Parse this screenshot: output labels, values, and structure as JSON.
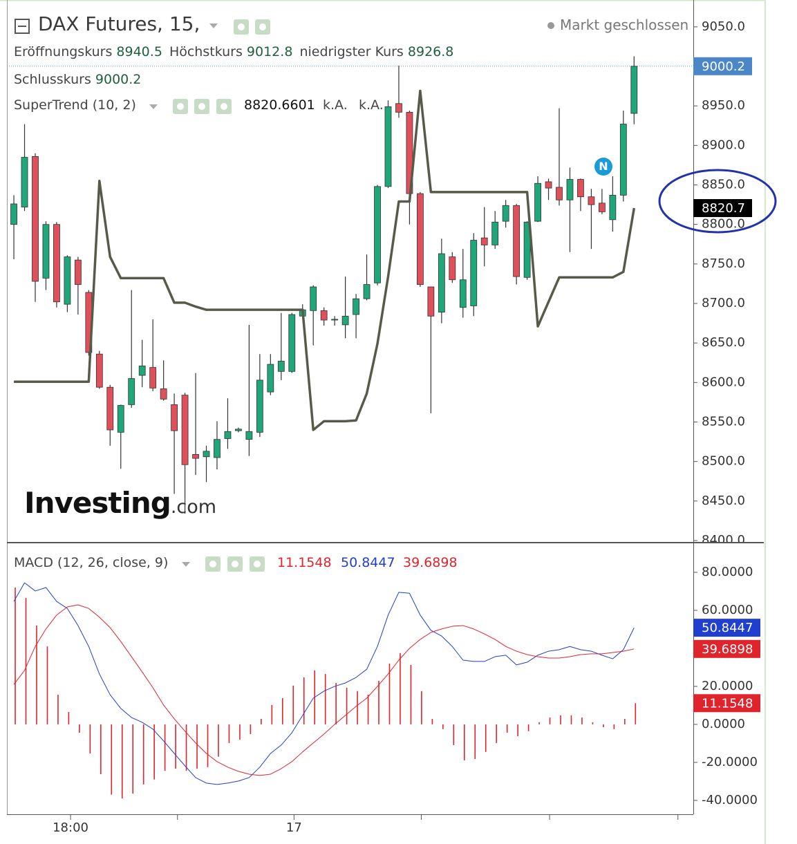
{
  "chart_data": [
    {
      "type": "candlestick",
      "title": "DAX Futures, 15,",
      "status": "Markt geschlossen",
      "ohlc_labels": {
        "open": "Eröffnungskurs",
        "high": "Höchstkurs",
        "low": "niedrigster Kurs",
        "close": "Schlusskurs"
      },
      "legend_na": [
        "k.A.",
        "k.A."
      ],
      "watermark": {
        "main": "Investing",
        "suffix": ".com"
      },
      "news_marker": "N",
      "up_color": "#1fa67a",
      "down_color": "#e0505a",
      "close_tag_color": "#4a86c8",
      "supertrend_tag_color": "#000000",
      "supertrend_tag": 8820.7,
      "candles": {
        "open": [
          8800,
          8822,
          8886,
          8732,
          8800,
          8699,
          8755,
          8714,
          8636,
          8594,
          8537,
          8572,
          8609,
          8619,
          8592,
          8572,
          8584,
          8509,
          8506,
          8505,
          8529,
          8539,
          8528,
          8537,
          8588,
          8614,
          8614,
          8684,
          8691,
          8691,
          8679,
          8673,
          8686,
          8706,
          8726,
          8848,
          8953,
          8942,
          8839,
          8721,
          8689,
          8759,
          8695,
          8697,
          8783,
          8774,
          8804,
          8824,
          8733,
          8804,
          8854,
          8847,
          8831,
          8857,
          8835,
          8827,
          8806,
          8837,
          8940.5
        ],
        "high": [
          8837,
          8927,
          8890,
          8804,
          8803,
          8761,
          8759,
          8717,
          8640,
          8597,
          8572,
          8717,
          8654,
          8680,
          8628,
          8586,
          8587,
          8612,
          8520,
          8551,
          8580,
          8543,
          8673,
          8636,
          8636,
          8688,
          8688,
          8699,
          8723,
          8695,
          8684,
          8734,
          8712,
          8762,
          8850,
          8957,
          9001,
          8944,
          8841,
          8721,
          8782,
          8765,
          8769,
          8789,
          8822,
          8817,
          8831,
          8826,
          8804,
          8861,
          8858,
          8947,
          8872,
          8858,
          8845,
          8845,
          8861,
          8944,
          9012.8
        ],
        "low": [
          8756,
          8817,
          8702,
          8717,
          8695,
          8689,
          8686,
          8634,
          8592,
          8520,
          8491,
          8568,
          8594,
          8589,
          8577,
          8459,
          8434,
          8483,
          8474,
          8490,
          8516,
          8537,
          8507,
          8531,
          8584,
          8603,
          8612,
          8682,
          8647,
          8672,
          8672,
          8656,
          8656,
          8704,
          8723,
          8846,
          8935,
          8800,
          8721,
          8561,
          8675,
          8726,
          8682,
          8684,
          8747,
          8769,
          8796,
          8724,
          8730,
          8803,
          8831,
          8824,
          8765,
          8817,
          8769,
          8813,
          8791,
          8829,
          8926.8
        ],
        "close": [
          8826,
          8885,
          8728,
          8800,
          8702,
          8759,
          8724,
          8638,
          8594,
          8540,
          8571,
          8605,
          8621,
          8593,
          8579,
          8539,
          8496,
          8504,
          8513,
          8528,
          8538,
          8541,
          8538,
          8603,
          8623,
          8627,
          8686,
          8692,
          8721,
          8679,
          8680,
          8684,
          8706,
          8724,
          8848,
          8949,
          8942,
          8839,
          8724,
          8684,
          8763,
          8730,
          8730,
          8780,
          8774,
          8803,
          8824,
          8734,
          8803,
          8852,
          8846,
          8831,
          8857,
          8835,
          8825,
          8816,
          8837,
          8927,
          9000.2
        ]
      },
      "series": [
        {
          "name": "SuperTrend (10, 2)",
          "color": "#565a48",
          "values": [
            8601,
            8601,
            8601,
            8601,
            8601,
            8601,
            8601,
            8601,
            8855,
            8759,
            8732,
            8732,
            8732,
            8732,
            8732,
            8701,
            8701,
            8696,
            8692,
            8692,
            8692,
            8692,
            8692,
            8692,
            8692,
            8692,
            8692,
            8692,
            8540,
            8551,
            8551,
            8551,
            8552,
            8586,
            8649,
            8734,
            8829,
            8829,
            8969,
            8841,
            8841,
            8841,
            8841,
            8841,
            8841,
            8841,
            8841,
            8841,
            8841,
            8671,
            8702,
            8733,
            8733,
            8733,
            8733,
            8733,
            8733,
            8740,
            8820.6601
          ]
        }
      ],
      "ylim": [
        8400,
        9084
      ],
      "yticks": [
        {
          "value": 8400,
          "label": "8400.0"
        },
        {
          "value": 8450,
          "label": "8450.0"
        },
        {
          "value": 8500,
          "label": "8500.0"
        },
        {
          "value": 8550,
          "label": "8550.0"
        },
        {
          "value": 8600,
          "label": "8600.0"
        },
        {
          "value": 8650,
          "label": "8650.0"
        },
        {
          "value": 8700,
          "label": "8700.0"
        },
        {
          "value": 8750,
          "label": "8750.0"
        },
        {
          "value": 8800,
          "label": "8800.0"
        },
        {
          "value": 8850,
          "label": "8850.0"
        },
        {
          "value": 8900,
          "label": "8900.0"
        },
        {
          "value": 8950,
          "label": "8950.0"
        },
        {
          "value": 9000,
          "label": "9000.0"
        },
        {
          "value": 9050,
          "label": "9050.0"
        }
      ]
    },
    {
      "type": "macd",
      "title": "MACD (12, 26, close, 9)",
      "series": [
        {
          "style": "histogram",
          "color": "#e0242c",
          "values": [
            72,
            66.5,
            52,
            41,
            15.6,
            6.5,
            -4.4,
            -15.3,
            -26.2,
            -37,
            -39,
            -36.4,
            -31.6,
            -29,
            -24.4,
            -23.3,
            -24.4,
            -23.3,
            -22.5,
            -17,
            -9.8,
            -8,
            -5.1,
            2.9,
            10.2,
            13.8,
            20.4,
            24.7,
            28.4,
            26.5,
            21.8,
            19.3,
            17.5,
            15.6,
            22.9,
            32,
            37.5,
            31.3,
            17.5,
            2.9,
            -2.5,
            -10.9,
            -18.9,
            -18.2,
            -14.5,
            -9.8,
            -4.4,
            -6.2,
            -3.6,
            1.1,
            3.6,
            4.7,
            4.7,
            3.6,
            1.1,
            -1.5,
            -2.5,
            2.9,
            11.1548
          ]
        },
        {
          "style": "line",
          "color": "#1f3fd0",
          "values": [
            64.7,
            74.5,
            70.2,
            72,
            64.7,
            61,
            52,
            41,
            26.5,
            15.6,
            8.4,
            3.6,
            1.1,
            -2.5,
            -8.7,
            -15.3,
            -21.8,
            -28,
            -30.9,
            -31.6,
            -30.9,
            -29.8,
            -28,
            -22.5,
            -15.3,
            -10.9,
            -4.4,
            4.7,
            13.8,
            17.5,
            20,
            21.8,
            24.7,
            29,
            41,
            57.5,
            69.5,
            69,
            57.5,
            49.5,
            46.5,
            41,
            33.8,
            33.1,
            33.1,
            35.6,
            36.4,
            31.3,
            32.7,
            36.4,
            38.5,
            39.3,
            41,
            39.3,
            38.5,
            36.4,
            34.5,
            39.3,
            50.8447
          ]
        },
        {
          "style": "line",
          "color": "#e0242c",
          "values": [
            21,
            28.4,
            41,
            50.2,
            57.5,
            61.8,
            62.9,
            61,
            56.4,
            50.9,
            43.6,
            35.6,
            27.6,
            19.3,
            10.2,
            2.9,
            -3.6,
            -9.8,
            -15.3,
            -19.6,
            -22.5,
            -24.7,
            -26.2,
            -26.9,
            -26.2,
            -23.3,
            -19.6,
            -14.5,
            -9.8,
            -5.1,
            0,
            4.7,
            9.5,
            13.8,
            20,
            26.5,
            33.8,
            40,
            44.7,
            48.4,
            50.2,
            51.6,
            52,
            50.2,
            47.6,
            44.7,
            41,
            38.5,
            36.7,
            35.6,
            34.9,
            34.9,
            35.6,
            36.7,
            37.1,
            37.1,
            37.8,
            38.5,
            39.6898
          ]
        }
      ],
      "ylim": [
        -47.3,
        94.9
      ],
      "yticks": [
        {
          "value": -40,
          "label": "-40.0000"
        },
        {
          "value": -20,
          "label": "-20.0000"
        },
        {
          "value": 0,
          "label": "0.0000"
        },
        {
          "value": 20,
          "label": "20.0000"
        },
        {
          "value": 40,
          "label": "40.0000"
        },
        {
          "value": 60,
          "label": "60.0000"
        },
        {
          "value": 80,
          "label": "80.0000"
        }
      ],
      "xlim": [
        -0.65,
        63.54
      ],
      "xticks": [
        {
          "value": 5.3,
          "label": "18:00"
        },
        {
          "value": 26.2,
          "label": "17"
        }
      ],
      "minor_xticks": [
        15.3,
        38.1,
        50.1,
        62.1
      ]
    }
  ]
}
